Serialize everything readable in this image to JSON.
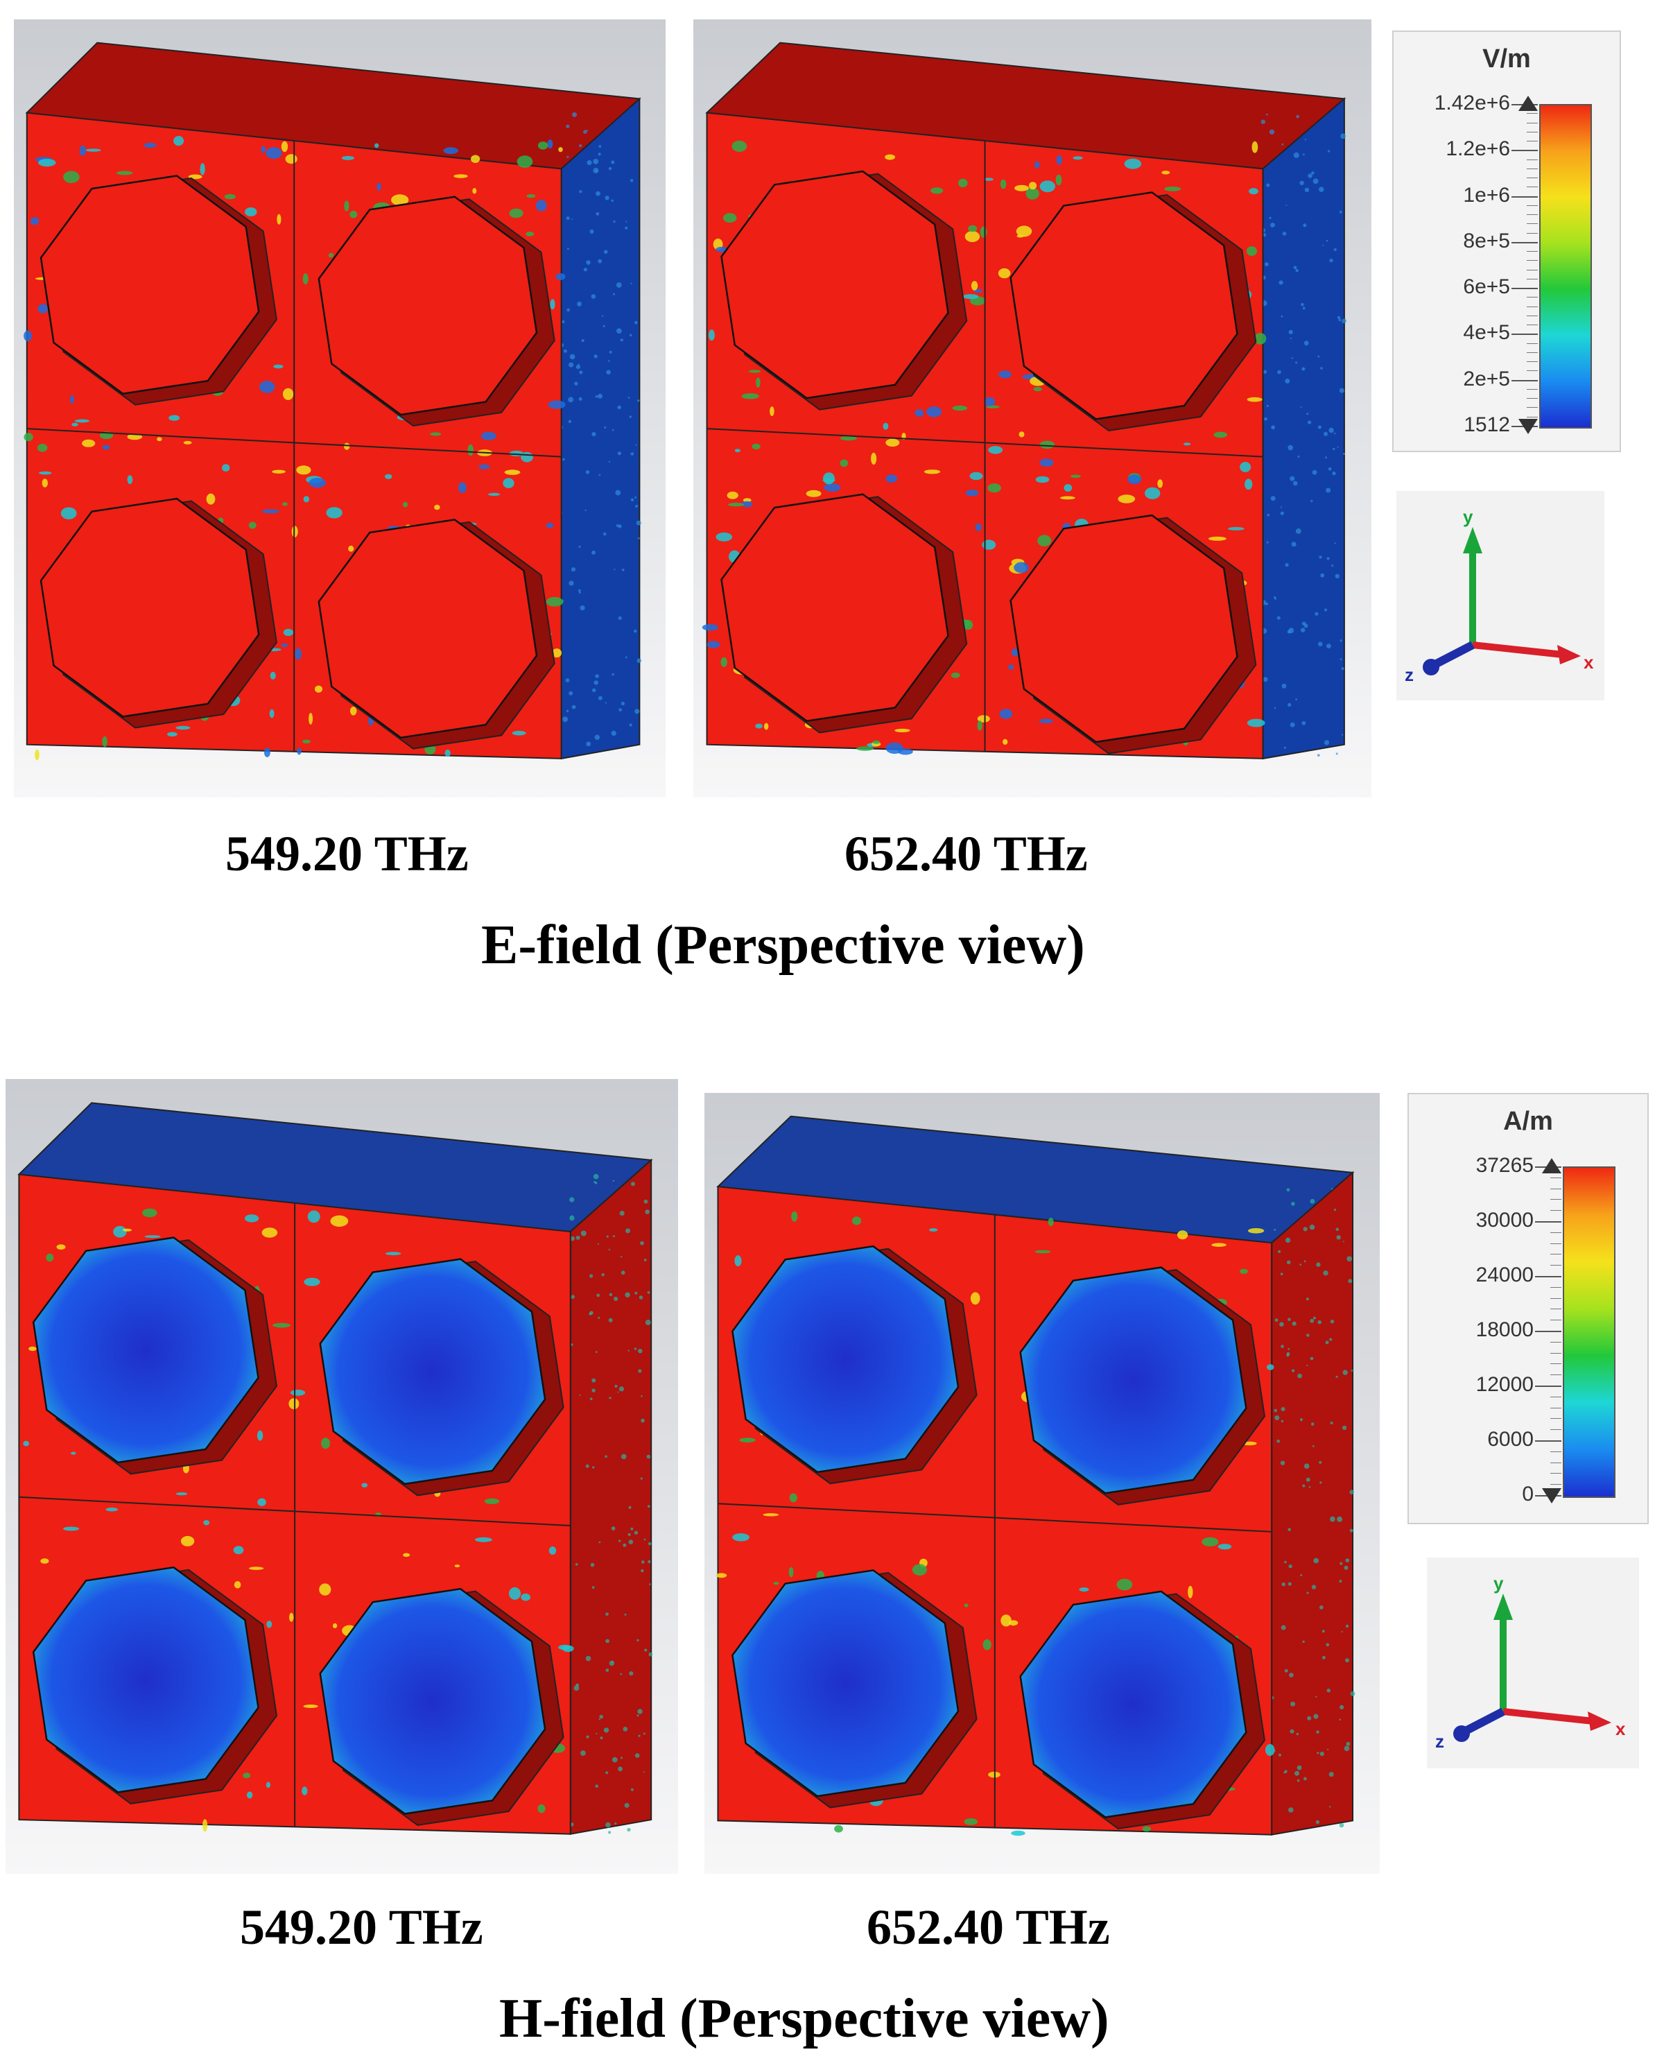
{
  "sections": [
    {
      "id": "e",
      "title": "E-field (Perspective view)",
      "panels": [
        {
          "freq_label": "549.20 THz",
          "front": "#ee1f14",
          "holes": "#ee1f14",
          "noise": "#2ab24a",
          "side": "#123fa6",
          "top": "#a8100c"
        },
        {
          "freq_label": "652.40 THz",
          "front": "#ee1f14",
          "holes": "#ee1f14",
          "noise": "#2ab24a",
          "side": "#123fa6",
          "top": "#a8100c"
        }
      ],
      "legend": {
        "unit": "V/m",
        "ticks": [
          "1.42e+6",
          "1.2e+6",
          "1e+6",
          "8e+5",
          "6e+5",
          "4e+5",
          "2e+5",
          "1512"
        ]
      },
      "axes": {
        "y": "y",
        "x": "x",
        "z": "z"
      }
    },
    {
      "id": "h",
      "title": "H-field (Perspective view)",
      "panels": [
        {
          "freq_label": "549.20 THz",
          "front": "#ee1f14",
          "holes": "#1c3cd6",
          "noise": "#2ab24a",
          "side": "#b0120d",
          "top": "#1a3f9e"
        },
        {
          "freq_label": "652.40 THz",
          "front": "#ee1f14",
          "holes": "#1c3cd6",
          "noise": "#2ab24a",
          "side": "#b0120d",
          "top": "#1a3f9e"
        }
      ],
      "legend": {
        "unit": "A/m",
        "ticks": [
          "37265",
          "30000",
          "24000",
          "18000",
          "12000",
          "6000",
          "0"
        ]
      },
      "axes": {
        "y": "y",
        "x": "x",
        "z": "z"
      }
    }
  ],
  "colorscale": [
    "#1b2fd0",
    "#1a8cf0",
    "#1ed6d6",
    "#22c83a",
    "#a6e21e",
    "#f5e11b",
    "#f7a21a",
    "#ee2a12"
  ]
}
